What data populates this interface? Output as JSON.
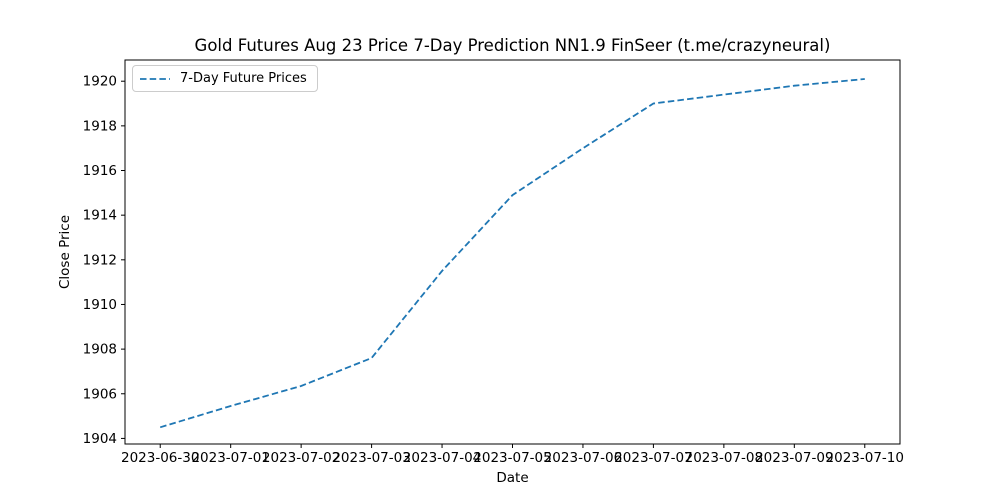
{
  "figure": {
    "background": "#ffffff",
    "frame_color": "#000000",
    "tick_label_color": "#000000"
  },
  "chart_data": {
    "type": "line",
    "title": "Gold Futures Aug 23 Price 7-Day Prediction NN1.9 FinSeer (t.me/crazyneural)",
    "xlabel": "Date",
    "ylabel": "Close Price",
    "categories": [
      "2023-06-30",
      "2023-07-01",
      "2023-07-02",
      "2023-07-03",
      "2023-07-04",
      "2023-07-05",
      "2023-07-06",
      "2023-07-07",
      "2023-07-08",
      "2023-07-09",
      "2023-07-10"
    ],
    "series": [
      {
        "name": "7-Day Future Prices",
        "values": [
          1904.5,
          1905.45,
          1906.35,
          1907.6,
          1911.5,
          1914.9,
          1917.0,
          1919.0,
          1919.4,
          1919.8,
          1920.1
        ],
        "color": "#1f77b4",
        "style": "dashed"
      }
    ],
    "yticks": [
      1904,
      1906,
      1908,
      1910,
      1912,
      1914,
      1916,
      1918,
      1920
    ],
    "ylim": [
      1903.75,
      1920.95
    ],
    "xlim": [
      -0.5,
      10.5
    ],
    "grid": false,
    "legend_position": "upper left"
  }
}
